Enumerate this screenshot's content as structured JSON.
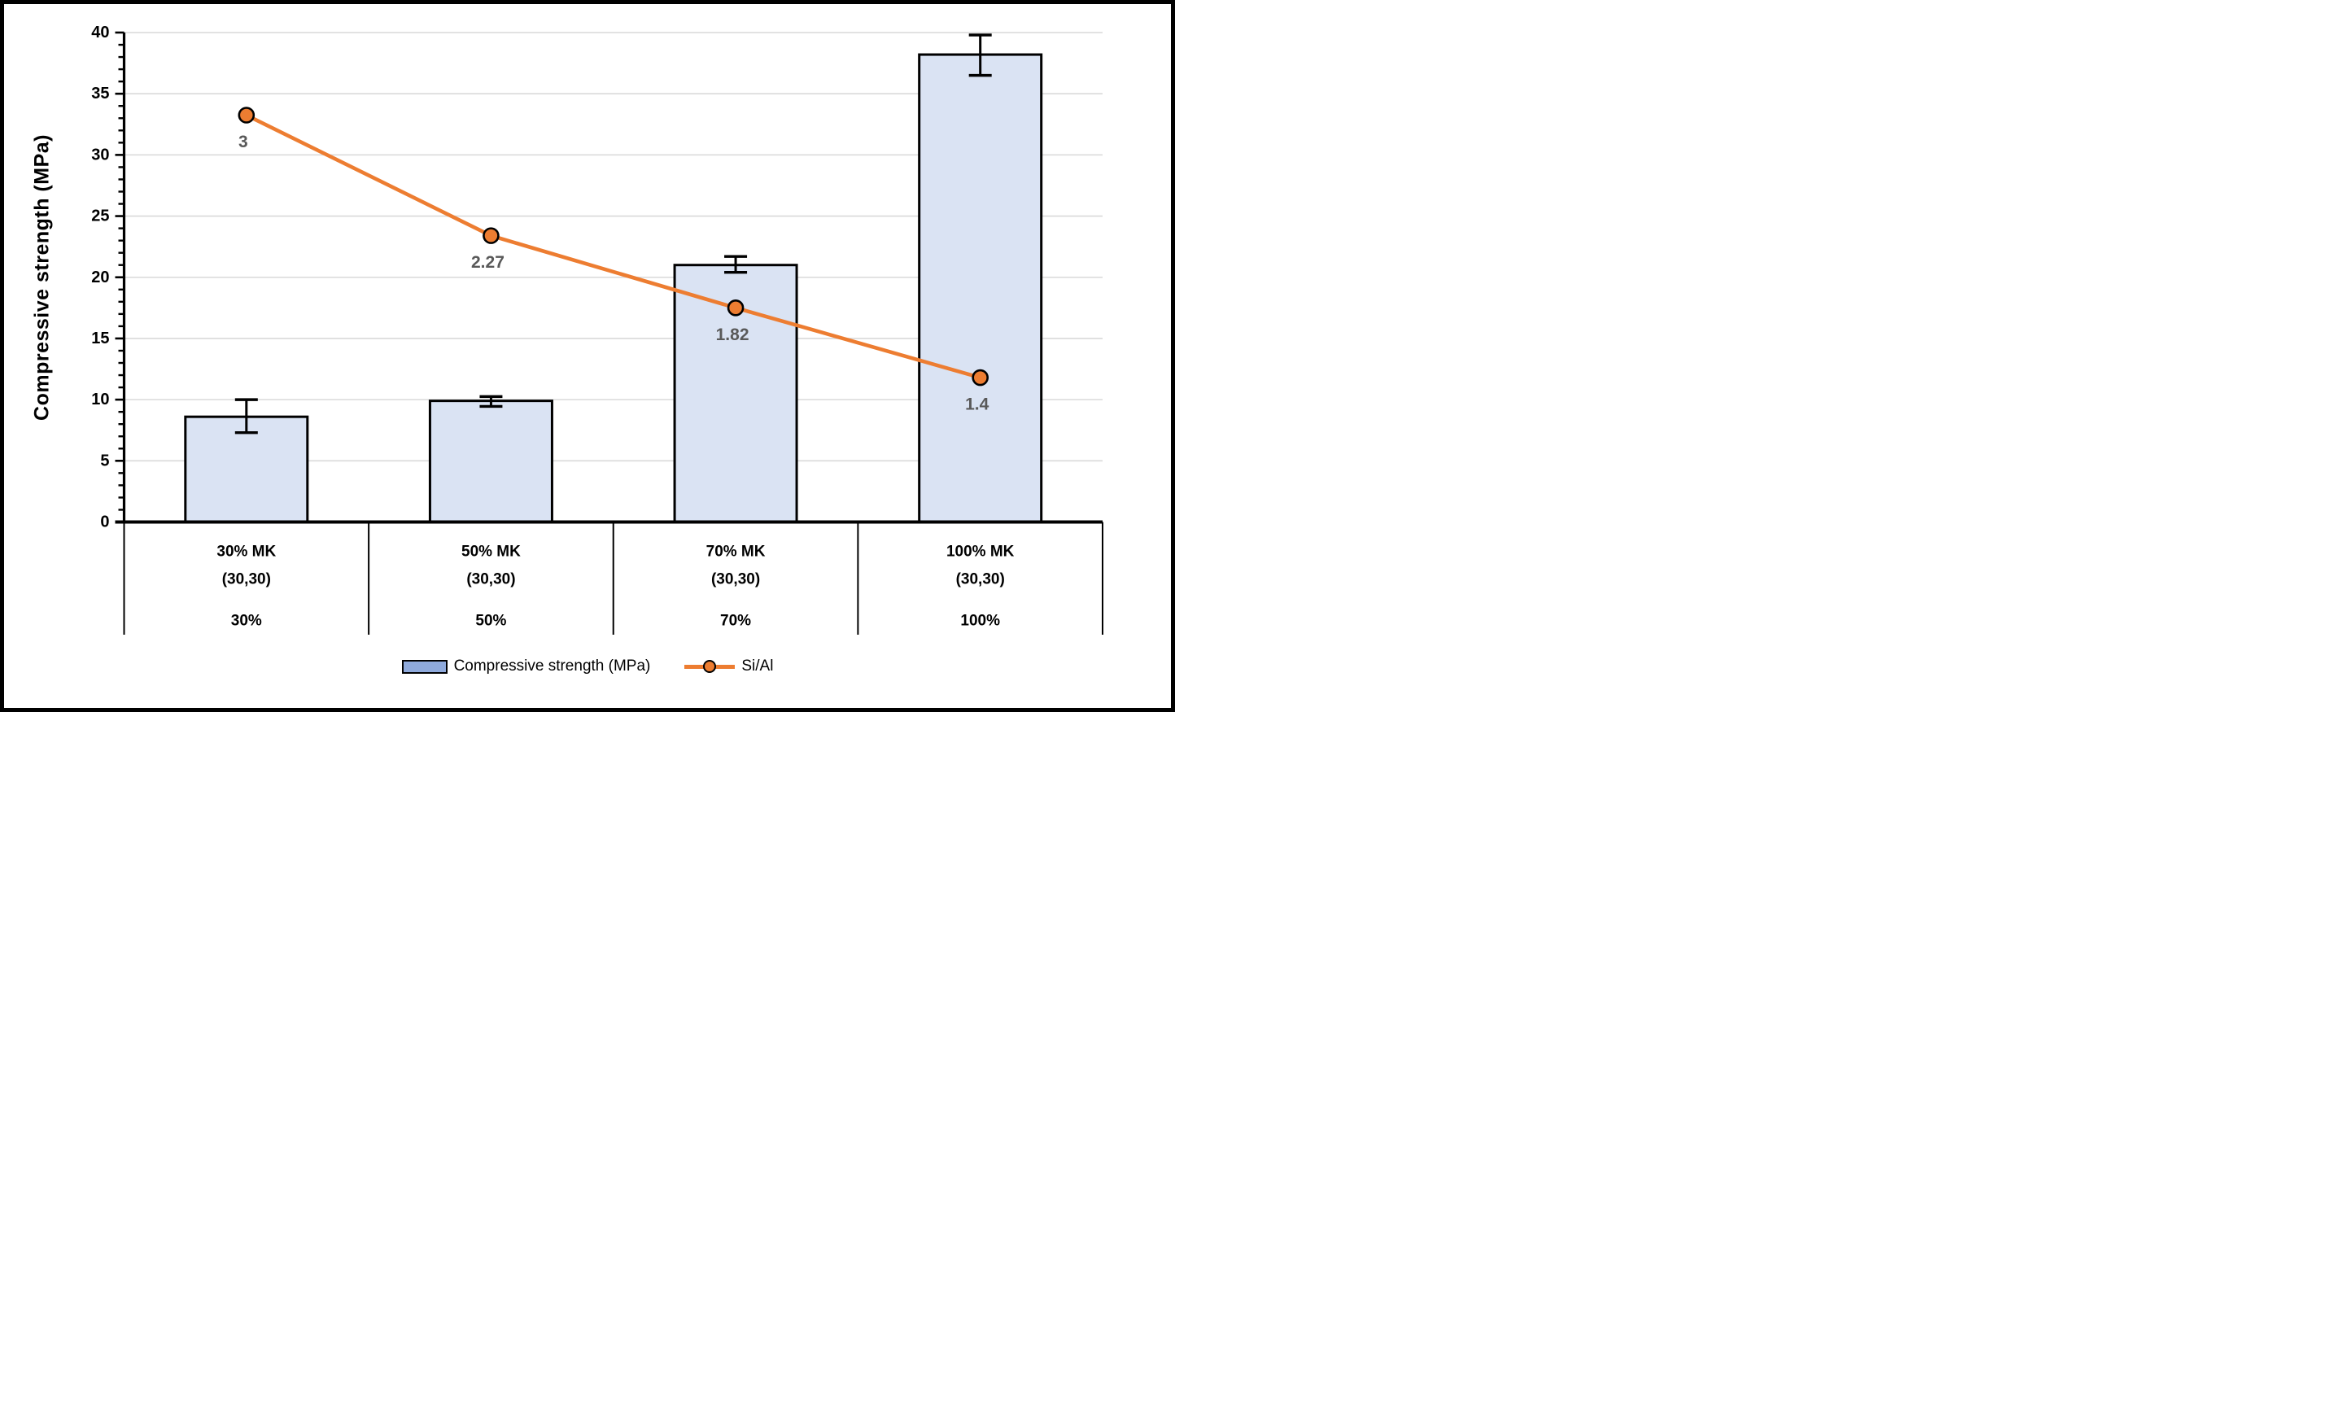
{
  "figure": {
    "background": "#FFFFFF",
    "border_color": "#000000"
  },
  "chart_data": {
    "type": "bar",
    "subtype": "combo-bar-line",
    "title": "",
    "ylabel": "Compressive strength (MPa)",
    "xlabel": "",
    "ylim": [
      0,
      40
    ],
    "y_major_step": 5,
    "y_minor_step": 1,
    "y_tick_labels": [
      "0",
      "5",
      "10",
      "15",
      "20",
      "25",
      "30",
      "35",
      "40"
    ],
    "grid": "horizontal-major-on",
    "legend_position": "bottom-center",
    "categories": [
      {
        "line1": "30% MK",
        "line2": "(30,30)",
        "group": "30%"
      },
      {
        "line1": "50% MK",
        "line2": "(30,30)",
        "group": "50%"
      },
      {
        "line1": "70% MK",
        "line2": "(30,30)",
        "group": "70%"
      },
      {
        "line1": "100% MK",
        "line2": "(30,30)",
        "group": "100%"
      }
    ],
    "series": [
      {
        "name": "Compressive strength (MPa)",
        "type": "bar",
        "axis": "left",
        "values": [
          8.6,
          9.9,
          21.0,
          38.2
        ],
        "error_plus": [
          1.4,
          0.35,
          0.7,
          1.6
        ],
        "error_minus": [
          1.3,
          0.45,
          0.6,
          1.7
        ],
        "fill": "#DAE3F3",
        "stroke": "#000000"
      },
      {
        "name": "Si/Al",
        "type": "line",
        "axis": "secondary-hidden",
        "values": [
          3,
          2.27,
          1.82,
          1.4
        ],
        "data_labels": [
          "3",
          "2.27",
          "1.82",
          "1.4"
        ],
        "left_axis_positions": [
          33.25,
          23.4,
          17.5,
          11.8
        ],
        "color": "#ED7D31",
        "marker": "circle",
        "marker_fill": "#ED7D31",
        "marker_stroke": "#000000",
        "label_color": "#595959"
      }
    ],
    "legend": {
      "items": [
        {
          "label": "Compressive strength (MPa)",
          "swatch_fill": "#8FAADC",
          "swatch_stroke": "#000000"
        },
        {
          "label": "Si/Al",
          "color": "#ED7D31",
          "marker_stroke": "#000000"
        }
      ]
    },
    "colors": {
      "gridline": "#D9D9D9",
      "axis": "#000000",
      "tick_label": "#000000",
      "category_label": "#000000"
    }
  }
}
